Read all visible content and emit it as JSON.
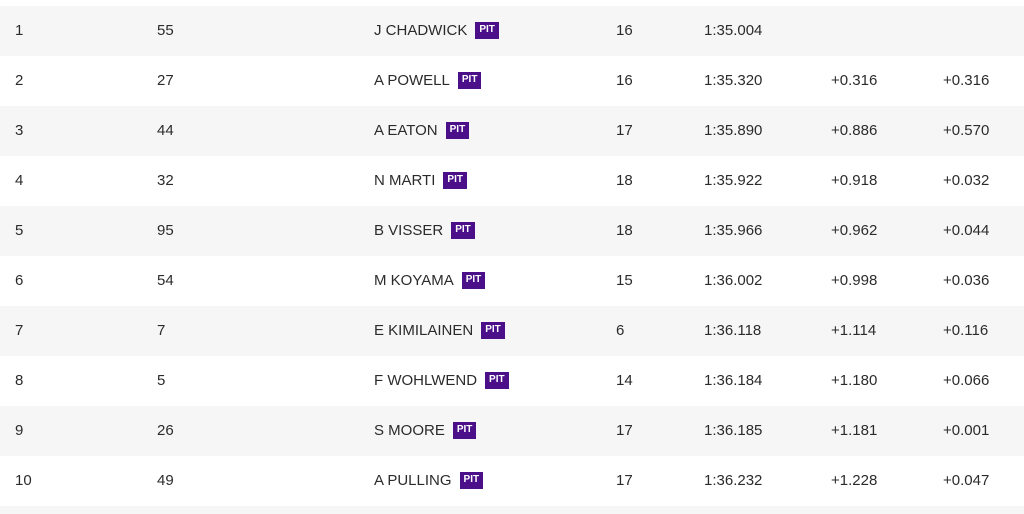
{
  "timing": {
    "pit_label": "PIT",
    "rows": [
      {
        "pos": "1",
        "num": "55",
        "driver": "J CHADWICK",
        "laps": "16",
        "time": "1:35.004",
        "gap": "",
        "interval": ""
      },
      {
        "pos": "2",
        "num": "27",
        "driver": "A POWELL",
        "laps": "16",
        "time": "1:35.320",
        "gap": "+0.316",
        "interval": "+0.316"
      },
      {
        "pos": "3",
        "num": "44",
        "driver": "A EATON",
        "laps": "17",
        "time": "1:35.890",
        "gap": "+0.886",
        "interval": "+0.570"
      },
      {
        "pos": "4",
        "num": "32",
        "driver": "N MARTI",
        "laps": "18",
        "time": "1:35.922",
        "gap": "+0.918",
        "interval": "+0.032"
      },
      {
        "pos": "5",
        "num": "95",
        "driver": "B VISSER",
        "laps": "18",
        "time": "1:35.966",
        "gap": "+0.962",
        "interval": "+0.044"
      },
      {
        "pos": "6",
        "num": "54",
        "driver": "M KOYAMA",
        "laps": "15",
        "time": "1:36.002",
        "gap": "+0.998",
        "interval": "+0.036"
      },
      {
        "pos": "7",
        "num": "7",
        "driver": "E KIMILAINEN",
        "laps": "6",
        "time": "1:36.118",
        "gap": "+1.114",
        "interval": "+0.116"
      },
      {
        "pos": "8",
        "num": "5",
        "driver": "F WOHLWEND",
        "laps": "14",
        "time": "1:36.184",
        "gap": "+1.180",
        "interval": "+0.066"
      },
      {
        "pos": "9",
        "num": "26",
        "driver": "S MOORE",
        "laps": "17",
        "time": "1:36.185",
        "gap": "+1.181",
        "interval": "+0.001"
      },
      {
        "pos": "10",
        "num": "49",
        "driver": "A PULLING",
        "laps": "17",
        "time": "1:36.232",
        "gap": "+1.228",
        "interval": "+0.047"
      }
    ]
  }
}
